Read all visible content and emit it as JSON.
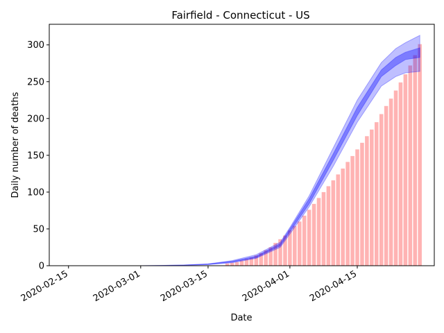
{
  "chart_data": {
    "type": "bar",
    "title": "Fairfield - Connecticut - US",
    "xlabel": "Date",
    "ylabel": "Daily number of deaths",
    "x_ticks": [
      "2020-02-15",
      "2020-03-01",
      "2020-03-15",
      "2020-04-01",
      "2020-04-15"
    ],
    "x_range": [
      "2020-02-11",
      "2020-05-01"
    ],
    "ylim": [
      0,
      328
    ],
    "y_ticks": [
      0,
      50,
      100,
      150,
      200,
      250,
      300
    ],
    "grid": false,
    "bars": {
      "name": "observed",
      "color": "#ff9999",
      "x": [
        "2020-03-19",
        "2020-03-20",
        "2020-03-21",
        "2020-03-22",
        "2020-03-23",
        "2020-03-24",
        "2020-03-25",
        "2020-03-26",
        "2020-03-27",
        "2020-03-28",
        "2020-03-29",
        "2020-03-30",
        "2020-03-31",
        "2020-04-01",
        "2020-04-02",
        "2020-04-03",
        "2020-04-04",
        "2020-04-05",
        "2020-04-06",
        "2020-04-07",
        "2020-04-08",
        "2020-04-09",
        "2020-04-10",
        "2020-04-11",
        "2020-04-12",
        "2020-04-13",
        "2020-04-14",
        "2020-04-15",
        "2020-04-16",
        "2020-04-17",
        "2020-04-18",
        "2020-04-19",
        "2020-04-20",
        "2020-04-21",
        "2020-04-22",
        "2020-04-23",
        "2020-04-24",
        "2020-04-25",
        "2020-04-26",
        "2020-04-27",
        "2020-04-28"
      ],
      "values": [
        3,
        4,
        5,
        7,
        9,
        11,
        14,
        17,
        21,
        25,
        31,
        36,
        41,
        48,
        54,
        60,
        68,
        76,
        84,
        92,
        100,
        108,
        116,
        124,
        132,
        141,
        149,
        158,
        167,
        176,
        185,
        195,
        206,
        217,
        227,
        238,
        249,
        260,
        272,
        286,
        301
      ]
    },
    "series": [
      {
        "name": "outer band",
        "color": "#0000ff",
        "opacity": 0.25,
        "x": [
          "2020-03-01",
          "2020-03-05",
          "2020-03-10",
          "2020-03-15",
          "2020-03-20",
          "2020-03-25",
          "2020-03-30",
          "2020-04-01",
          "2020-04-05",
          "2020-04-10",
          "2020-04-15",
          "2020-04-20",
          "2020-04-23",
          "2020-04-25",
          "2020-04-28"
        ],
        "lower": [
          0,
          0.2,
          0.6,
          1.5,
          4,
          10,
          25,
          43,
          80,
          135,
          195,
          244,
          257,
          262,
          264
        ],
        "upper": [
          0,
          0.3,
          1,
          2.5,
          7,
          15,
          32,
          52,
          95,
          160,
          225,
          276,
          295,
          303,
          313
        ]
      },
      {
        "name": "inner band",
        "color": "#0000ff",
        "opacity": 0.35,
        "x": [
          "2020-03-01",
          "2020-03-05",
          "2020-03-10",
          "2020-03-15",
          "2020-03-20",
          "2020-03-25",
          "2020-03-30",
          "2020-04-01",
          "2020-04-05",
          "2020-04-10",
          "2020-04-15",
          "2020-04-20",
          "2020-04-23",
          "2020-04-25",
          "2020-04-28"
        ],
        "lower": [
          0,
          0.2,
          0.7,
          1.8,
          5,
          11,
          27,
          46,
          84,
          143,
          204,
          257,
          272,
          280,
          283
        ],
        "upper": [
          0,
          0.3,
          0.9,
          2.2,
          6,
          13,
          30,
          50,
          91,
          152,
          215,
          266,
          283,
          290,
          296
        ]
      }
    ]
  }
}
